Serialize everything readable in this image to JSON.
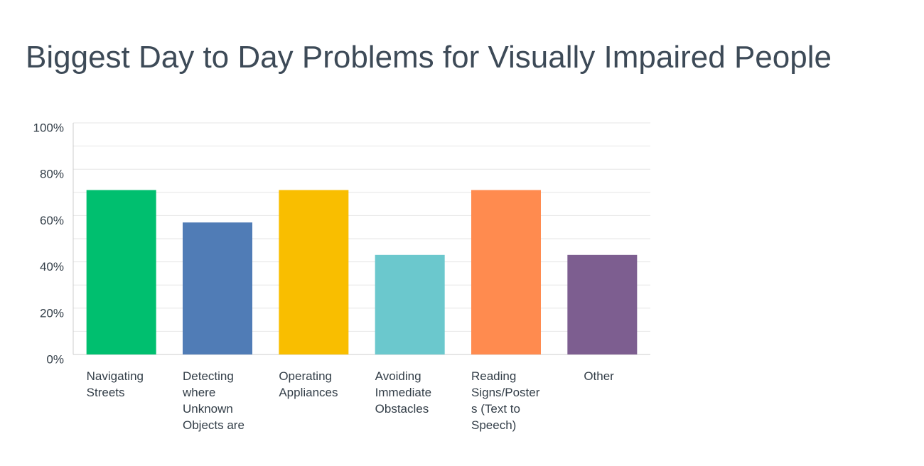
{
  "chart_data": {
    "type": "bar",
    "title": "Biggest Day to Day Problems for Visually Impaired People",
    "categories": [
      "Navigating Streets",
      "Detecting where Unknown Objects are",
      "Operating Appliances",
      "Avoiding Immediate Obstacles",
      "Reading Signs/Posters (Text to Speech)",
      "Other"
    ],
    "values": [
      71,
      57,
      71,
      43,
      71,
      43
    ],
    "colors": [
      "#00bf6f",
      "#507cb6",
      "#f9be00",
      "#6bc8cd",
      "#ff8b4f",
      "#7d5e90"
    ],
    "ylim": [
      0,
      100
    ],
    "yticks": [
      {
        "value": 0,
        "label": "0%"
      },
      {
        "value": 20,
        "label": "20%"
      },
      {
        "value": 40,
        "label": "40%"
      },
      {
        "value": 60,
        "label": "60%"
      },
      {
        "value": 80,
        "label": "80%"
      },
      {
        "value": 100,
        "label": "100%"
      }
    ],
    "minor_grid": [
      10,
      30,
      50,
      70,
      90
    ],
    "grid": true
  }
}
